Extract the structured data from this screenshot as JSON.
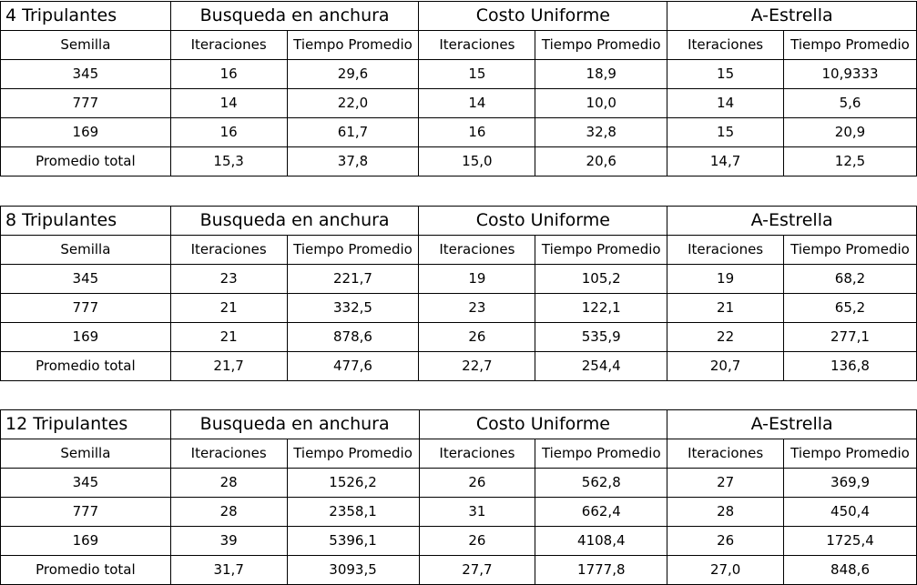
{
  "header": {
    "algorithms": [
      "Busqueda en anchura",
      "Costo Uniforme",
      "A-Estrella"
    ],
    "seed_label": "Semilla",
    "iter_label": "Iteraciones",
    "time_label": "Tiempo Promedio"
  },
  "tables": [
    {
      "title": "4 Tripulantes",
      "rows": [
        [
          "345",
          "16",
          "29,6",
          "15",
          "18,9",
          "15",
          "10,9333"
        ],
        [
          "777",
          "14",
          "22,0",
          "14",
          "10,0",
          "14",
          "5,6"
        ],
        [
          "169",
          "16",
          "61,7",
          "16",
          "32,8",
          "15",
          "20,9"
        ],
        [
          "Promedio total",
          "15,3",
          "37,8",
          "15,0",
          "20,6",
          "14,7",
          "12,5"
        ]
      ]
    },
    {
      "title": "8 Tripulantes",
      "rows": [
        [
          "345",
          "23",
          "221,7",
          "19",
          "105,2",
          "19",
          "68,2"
        ],
        [
          "777",
          "21",
          "332,5",
          "23",
          "122,1",
          "21",
          "65,2"
        ],
        [
          "169",
          "21",
          "878,6",
          "26",
          "535,9",
          "22",
          "277,1"
        ],
        [
          "Promedio total",
          "21,7",
          "477,6",
          "22,7",
          "254,4",
          "20,7",
          "136,8"
        ]
      ]
    },
    {
      "title": "12 Tripulantes",
      "rows": [
        [
          "345",
          "28",
          "1526,2",
          "26",
          "562,8",
          "27",
          "369,9"
        ],
        [
          "777",
          "28",
          "2358,1",
          "31",
          "662,4",
          "28",
          "450,4"
        ],
        [
          "169",
          "39",
          "5396,1",
          "26",
          "4108,4",
          "26",
          "1725,4"
        ],
        [
          "Promedio total",
          "31,7",
          "3093,5",
          "27,7",
          "1777,8",
          "27,0",
          "848,6"
        ]
      ]
    }
  ]
}
